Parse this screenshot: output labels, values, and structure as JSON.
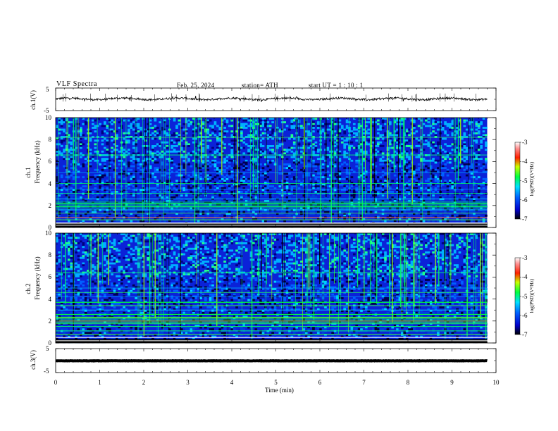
{
  "header": {
    "title": "VLF  Spectra",
    "date": "Feb. 25, 2024",
    "station": "station= ATH",
    "start_ut": "start  UT  =    1  : 10 : 1"
  },
  "chart_data": [
    {
      "type": "line",
      "panel": "ch1-waveform",
      "ylabel": "ch.1(V)",
      "ylim": [
        -5,
        5
      ],
      "yticks": [
        "5",
        "-5"
      ],
      "xlim": [
        0,
        10
      ],
      "x_end": 9.8,
      "baseline": 0.2,
      "series": [
        {
          "color": "#000000"
        }
      ]
    },
    {
      "type": "heatmap",
      "panel": "ch1-spectrogram",
      "ylabel_1": "ch.1",
      "ylabel_2": "Frequency (kHz)",
      "ylim": [
        0,
        10
      ],
      "yticks": [
        "0",
        "2",
        "4",
        "6",
        "8",
        "10"
      ],
      "xlim": [
        0,
        10
      ],
      "x_end": 9.8,
      "colorbar": {
        "label": "log(PSD)(V²/Hz)",
        "ticks": [
          "-3",
          "-4",
          "-5",
          "-6",
          "-7"
        ],
        "range": [
          -7,
          -3
        ]
      }
    },
    {
      "type": "heatmap",
      "panel": "ch2-spectrogram",
      "ylabel_1": "ch.2",
      "ylabel_2": "Frequency (kHz)",
      "ylim": [
        0,
        10
      ],
      "yticks": [
        "0",
        "2",
        "4",
        "6",
        "8",
        "10"
      ],
      "xlim": [
        0,
        10
      ],
      "x_end": 9.8,
      "colorbar": {
        "label": "log(PSD)(V²/Hz)",
        "ticks": [
          "-3",
          "-4",
          "-5",
          "-6",
          "-7"
        ],
        "range": [
          -7,
          -3
        ]
      }
    },
    {
      "type": "line",
      "panel": "ch3-waveform",
      "ylabel": "ch.3(V)",
      "ylim": [
        -5,
        5
      ],
      "yticks": [
        "5",
        "-5"
      ],
      "xlim": [
        0,
        10
      ],
      "x_end": 9.8,
      "baseline": -0.1,
      "series": [
        {
          "color": "#000000"
        }
      ]
    }
  ],
  "xaxis": {
    "label": "Time  (min)",
    "ticks": [
      "0",
      "1",
      "2",
      "3",
      "4",
      "5",
      "6",
      "7",
      "8",
      "9",
      "10"
    ]
  },
  "colors": {
    "background_spec": "#0a1fd0",
    "colormap": [
      "#000000",
      "#0000ff",
      "#00ffff",
      "#00ff00",
      "#ffff00",
      "#ff0000",
      "#ffffff"
    ]
  }
}
